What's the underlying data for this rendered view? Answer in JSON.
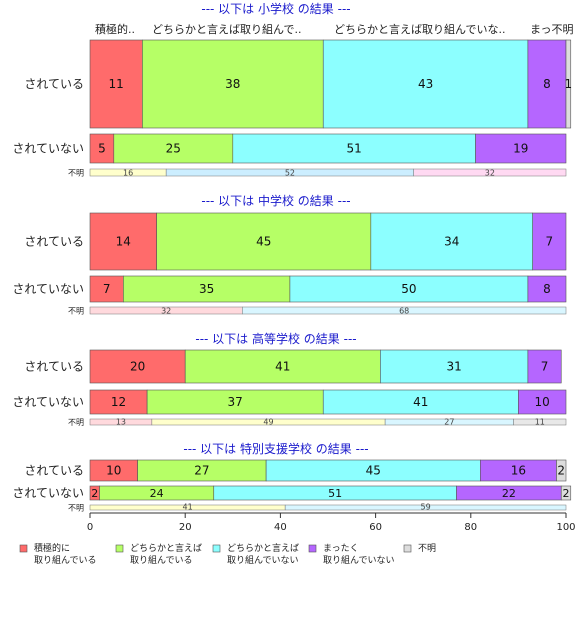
{
  "chart_data": {
    "type": "bar",
    "orientation": "horizontal",
    "stacked": true,
    "xlim": [
      0,
      100
    ],
    "x_ticks": [
      "0",
      "20",
      "40",
      "60",
      "80",
      "100"
    ],
    "grid": false,
    "legend_position": "bottom-left",
    "colors": {
      "cat1": "#ff6b6b",
      "cat2": "#b6ff66",
      "cat3": "#8cffff",
      "cat4": "#b566ff",
      "cat5": "#dddddd",
      "title": "#1a1acc"
    },
    "top_header_labels": [
      "積極的..",
      "どちらかと言えば取り組んで..",
      "どちらかと言えば取り組んでいな..",
      "まっ不明"
    ],
    "legend": [
      {
        "line1": "積極的に",
        "line2": "取り組んでいる"
      },
      {
        "line1": "どちらかと言えば",
        "line2": "取り組んでいる"
      },
      {
        "line1": "どちらかと言えば",
        "line2": "取り組んでいない"
      },
      {
        "line1": "まったく",
        "line2": "取り組んでいない"
      },
      {
        "line1": "不明",
        "line2": ""
      }
    ],
    "panels": [
      {
        "title": "--- 以下は 小学校 の結果 ---",
        "rows": [
          {
            "label": "されている",
            "values": [
              11,
              38,
              43,
              8,
              1
            ]
          },
          {
            "label": "されていない",
            "values": [
              5,
              25,
              51,
              19,
              0
            ]
          },
          {
            "label": "不明",
            "values": [
              16,
              52,
              32
            ]
          }
        ]
      },
      {
        "title": "--- 以下は 中学校 の結果 ---",
        "rows": [
          {
            "label": "されている",
            "values": [
              14,
              45,
              34,
              7,
              0
            ]
          },
          {
            "label": "されていない",
            "values": [
              7,
              35,
              50,
              8,
              0
            ]
          },
          {
            "label": "不明",
            "values": [
              32,
              68
            ]
          }
        ]
      },
      {
        "title": "--- 以下は 高等学校 の結果 ---",
        "rows": [
          {
            "label": "されている",
            "values": [
              20,
              41,
              31,
              7,
              0
            ]
          },
          {
            "label": "されていない",
            "values": [
              12,
              37,
              41,
              10,
              0
            ]
          },
          {
            "label": "不明",
            "values": [
              13,
              49,
              27,
              11
            ]
          }
        ]
      },
      {
        "title": "--- 以下は 特別支援学校 の結果 ---",
        "rows": [
          {
            "label": "されている",
            "values": [
              10,
              27,
              45,
              16,
              2
            ]
          },
          {
            "label": "されていない",
            "values": [
              2,
              24,
              51,
              22,
              2
            ]
          },
          {
            "label": "不明",
            "values": [
              41,
              59
            ]
          }
        ]
      }
    ]
  }
}
